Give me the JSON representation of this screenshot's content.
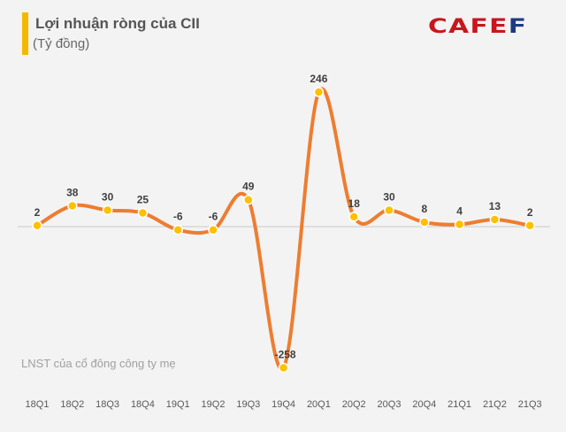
{
  "header": {
    "title": "Lợi nhuận ròng của CII",
    "subtitle": "(Tỷ đồng)",
    "logo": "CAFEF"
  },
  "note": "LNST của cổ đông công ty mẹ",
  "chart_data": {
    "type": "line",
    "title": "Lợi nhuận ròng của CII",
    "ylabel": "(Tỷ đồng)",
    "categories": [
      "18Q1",
      "18Q2",
      "18Q3",
      "18Q4",
      "19Q1",
      "19Q2",
      "19Q3",
      "19Q4",
      "20Q1",
      "20Q2",
      "20Q3",
      "20Q4",
      "21Q1",
      "21Q2",
      "21Q3"
    ],
    "values": [
      2,
      38,
      30,
      25,
      -6,
      -6,
      49,
      -258,
      246,
      18,
      30,
      8,
      4,
      13,
      2
    ],
    "smooth": true,
    "grid": false,
    "legend": "none",
    "colors": {
      "line": "#ed7d31",
      "marker": "#ffc000",
      "zero_line": "#c8c8c8"
    }
  }
}
